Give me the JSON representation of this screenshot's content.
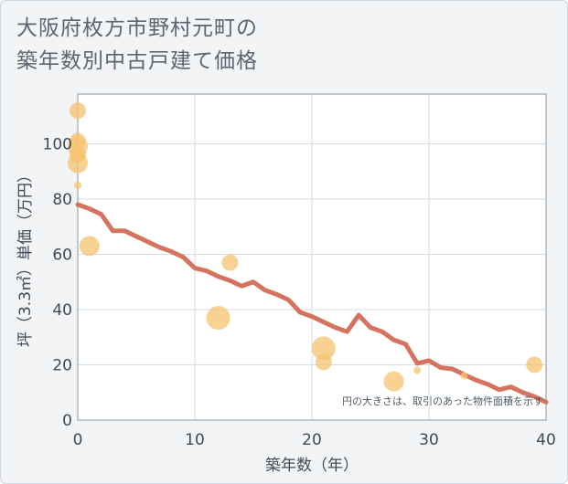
{
  "title_line1": "大阪府枚方市野村元町の",
  "title_line2": "築年数別中古戸建て価格",
  "chart_data": {
    "type": "scatter",
    "xlabel": "築年数（年）",
    "ylabel": "坪（3.3㎡）単価（万円）",
    "xlim": [
      0,
      40
    ],
    "ylim": [
      0,
      118
    ],
    "xticks": [
      0,
      10,
      20,
      30,
      40
    ],
    "yticks": [
      0,
      20,
      40,
      60,
      80,
      100
    ],
    "grid": true,
    "note": "円の大きさは、取引のあった物件面積を示す",
    "colors": {
      "bubble": "#f5c36e",
      "line": "#d4735f",
      "plot_bg": "#ffffff",
      "grid": "#d3dde6"
    },
    "bubbles": [
      {
        "x": 0,
        "y": 112,
        "size": 3
      },
      {
        "x": 0,
        "y": 101,
        "size": 3
      },
      {
        "x": 0,
        "y": 99,
        "size": 4
      },
      {
        "x": 0,
        "y": 96,
        "size": 3
      },
      {
        "x": 0,
        "y": 93,
        "size": 4
      },
      {
        "x": 0,
        "y": 85,
        "size": 1
      },
      {
        "x": 1,
        "y": 63,
        "size": 4
      },
      {
        "x": 12,
        "y": 37,
        "size": 5
      },
      {
        "x": 13,
        "y": 57,
        "size": 3
      },
      {
        "x": 21,
        "y": 26,
        "size": 5
      },
      {
        "x": 21,
        "y": 21,
        "size": 3
      },
      {
        "x": 27,
        "y": 14,
        "size": 4
      },
      {
        "x": 29,
        "y": 18,
        "size": 1
      },
      {
        "x": 33,
        "y": 16,
        "size": 1
      },
      {
        "x": 39,
        "y": 20,
        "size": 3
      }
    ],
    "trend": {
      "x": [
        0,
        1,
        2,
        3,
        4,
        5,
        6,
        7,
        8,
        9,
        10,
        11,
        12,
        13,
        14,
        15,
        16,
        17,
        18,
        19,
        20,
        21,
        22,
        23,
        24,
        25,
        26,
        27,
        28,
        29,
        30,
        31,
        32,
        33,
        34,
        35,
        36,
        37,
        38,
        39,
        40
      ],
      "y": [
        78,
        76.5,
        74.5,
        68.5,
        68.5,
        66.5,
        64.5,
        62.5,
        61,
        59,
        55,
        54,
        52,
        50.5,
        48.5,
        50,
        47,
        45.5,
        43.5,
        39,
        37.5,
        35.5,
        33.5,
        32,
        38,
        33.5,
        32,
        29,
        27.5,
        20.5,
        21.5,
        19,
        18.5,
        16.5,
        14.5,
        13,
        11,
        12,
        10,
        8.5,
        6.5
      ]
    }
  }
}
